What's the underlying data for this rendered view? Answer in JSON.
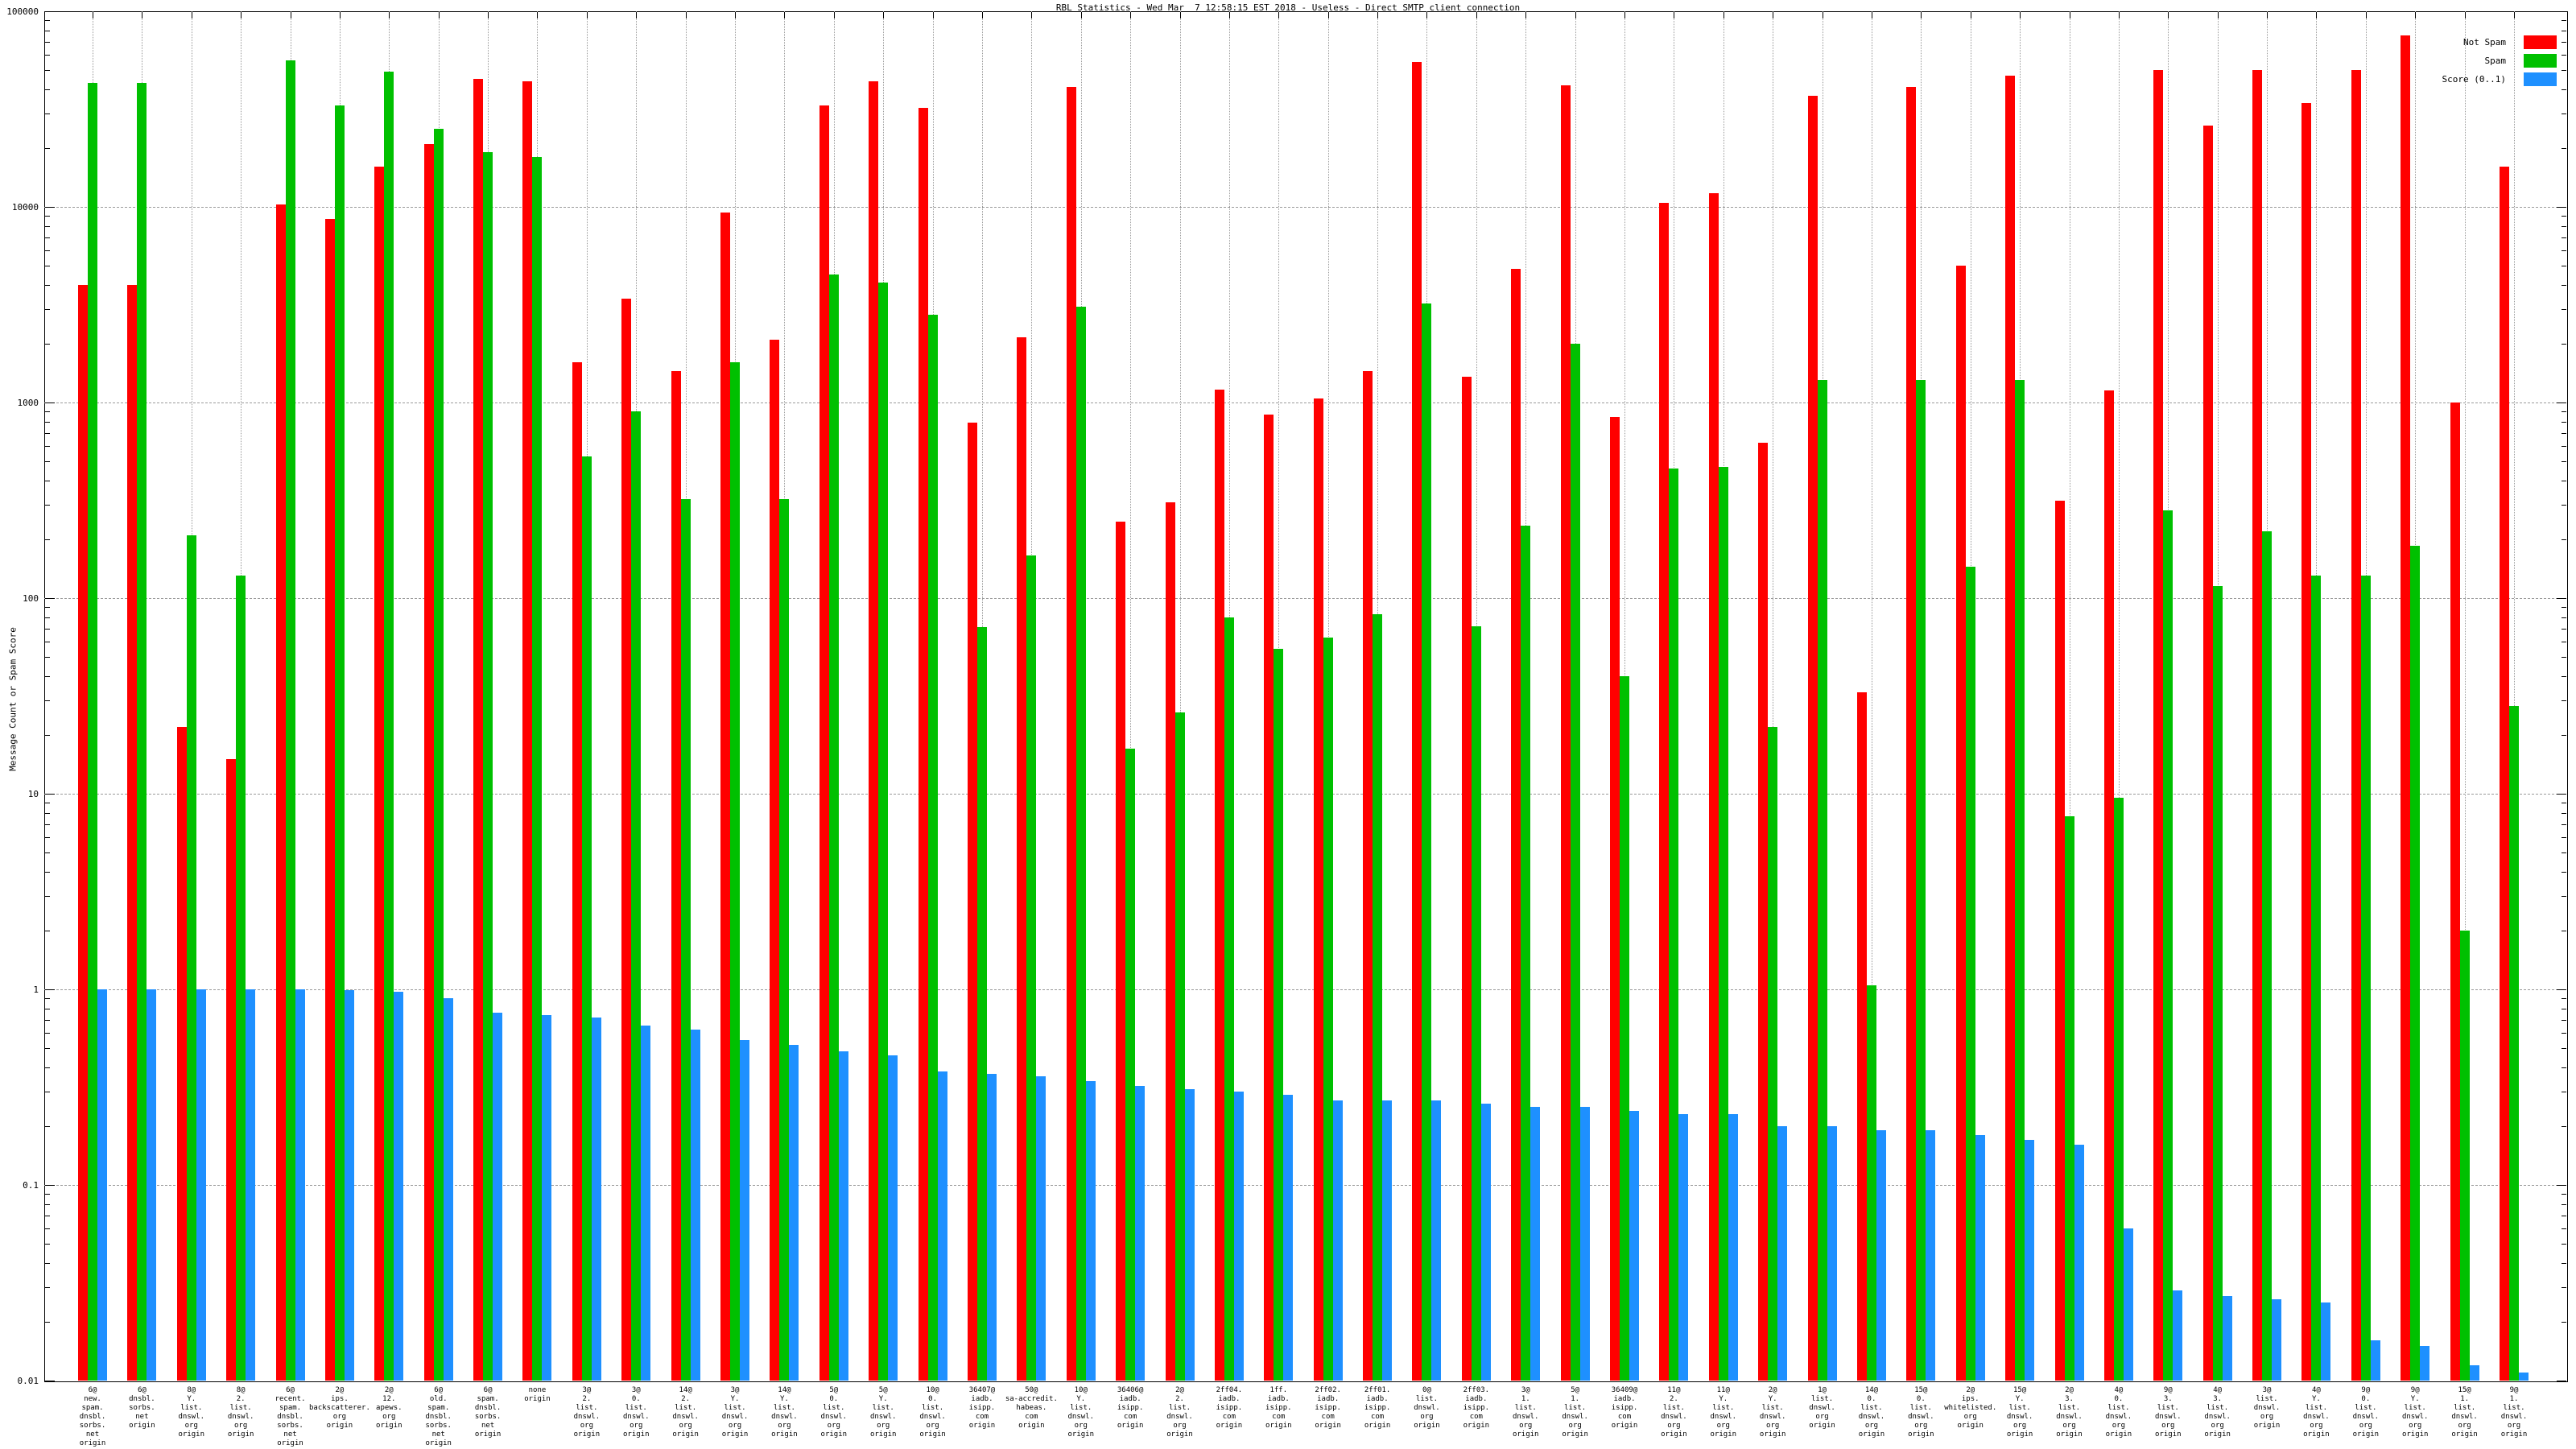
{
  "title": "RBL Statistics - Wed Mar  7 12:58:15 EST 2018 - Useless - Direct SMTP client connection",
  "chart_data": {
    "type": "bar",
    "title": "RBL Statistics - Wed Mar  7 12:58:15 EST 2018 - Useless - Direct SMTP client connection",
    "xlabel": "",
    "ylabel": "Message Count or Spam Score",
    "y_scale": "log",
    "ylim": [
      0.01,
      100000
    ],
    "y_ticks": [
      "100000",
      "10000",
      "1000",
      "100",
      "10",
      "1",
      "0.1",
      "0.01"
    ],
    "grid": true,
    "legend_position": "top-right",
    "legend": [
      "Not Spam",
      "Spam",
      "Score (0..1)"
    ],
    "colors": {
      "not_spam": "#ff0000",
      "spam": "#00c000",
      "score": "#1e90ff"
    },
    "categories": [
      [
        "6@",
        "new.",
        "spam.",
        "dnsbl.",
        "sorbs.",
        "net",
        "origin"
      ],
      [
        "6@",
        "dnsbl.",
        "sorbs.",
        "net",
        "origin"
      ],
      [
        "8@",
        "Y.",
        "list.",
        "dnswl.",
        "org",
        "origin"
      ],
      [
        "8@",
        "2.",
        "list.",
        "dnswl.",
        "org",
        "origin"
      ],
      [
        "6@",
        "recent.",
        "spam.",
        "dnsbl.",
        "sorbs.",
        "net",
        "origin"
      ],
      [
        "2@",
        "ips.",
        "backscatterer.",
        "org",
        "origin"
      ],
      [
        "2@",
        "12.",
        "apews.",
        "org",
        "origin"
      ],
      [
        "6@",
        "old.",
        "spam.",
        "dnsbl.",
        "sorbs.",
        "net",
        "origin"
      ],
      [
        "6@",
        "spam.",
        "dnsbl.",
        "sorbs.",
        "net",
        "origin"
      ],
      [
        "none",
        "origin"
      ],
      [
        "3@",
        "2.",
        "list.",
        "dnswl.",
        "org",
        "origin"
      ],
      [
        "3@",
        "0.",
        "list.",
        "dnswl.",
        "org",
        "origin"
      ],
      [
        "14@",
        "2.",
        "list.",
        "dnswl.",
        "org",
        "origin"
      ],
      [
        "3@",
        "Y.",
        "list.",
        "dnswl.",
        "org",
        "origin"
      ],
      [
        "14@",
        "Y.",
        "list.",
        "dnswl.",
        "org",
        "origin"
      ],
      [
        "5@",
        "0.",
        "list.",
        "dnswl.",
        "org",
        "origin"
      ],
      [
        "5@",
        "Y.",
        "list.",
        "dnswl.",
        "org",
        "origin"
      ],
      [
        "10@",
        "0.",
        "list.",
        "dnswl.",
        "org",
        "origin"
      ],
      [
        "36407@",
        "iadb.",
        "isipp.",
        "com",
        "origin"
      ],
      [
        "50@",
        "sa-accredit.",
        "habeas.",
        "com",
        "origin"
      ],
      [
        "10@",
        "Y.",
        "list.",
        "dnswl.",
        "org",
        "origin"
      ],
      [
        "36406@",
        "iadb.",
        "isipp.",
        "com",
        "origin"
      ],
      [
        "2@",
        "2.",
        "list.",
        "dnswl.",
        "org",
        "origin"
      ],
      [
        "2ff04.",
        "iadb.",
        "isipp.",
        "com",
        "origin"
      ],
      [
        "1ff.",
        "iadb.",
        "isipp.",
        "com",
        "origin"
      ],
      [
        "2ff02.",
        "iadb.",
        "isipp.",
        "com",
        "origin"
      ],
      [
        "2ff01.",
        "iadb.",
        "isipp.",
        "com",
        "origin"
      ],
      [
        "0@",
        "list.",
        "dnswl.",
        "org",
        "origin"
      ],
      [
        "2ff03.",
        "iadb.",
        "isipp.",
        "com",
        "origin"
      ],
      [
        "3@",
        "1.",
        "list.",
        "dnswl.",
        "org",
        "origin"
      ],
      [
        "5@",
        "1.",
        "list.",
        "dnswl.",
        "org",
        "origin"
      ],
      [
        "36409@",
        "iadb.",
        "isipp.",
        "com",
        "origin"
      ],
      [
        "11@",
        "2.",
        "list.",
        "dnswl.",
        "org",
        "origin"
      ],
      [
        "11@",
        "Y.",
        "list.",
        "dnswl.",
        "org",
        "origin"
      ],
      [
        "2@",
        "Y.",
        "list.",
        "dnswl.",
        "org",
        "origin"
      ],
      [
        "1@",
        "list.",
        "dnswl.",
        "org",
        "origin"
      ],
      [
        "14@",
        "0.",
        "list.",
        "dnswl.",
        "org",
        "origin"
      ],
      [
        "15@",
        "0.",
        "list.",
        "dnswl.",
        "org",
        "origin"
      ],
      [
        "2@",
        "ips.",
        "whitelisted.",
        "org",
        "origin"
      ],
      [
        "15@",
        "Y.",
        "list.",
        "dnswl.",
        "org",
        "origin"
      ],
      [
        "2@",
        "3.",
        "list.",
        "dnswl.",
        "org",
        "origin"
      ],
      [
        "4@",
        "0.",
        "list.",
        "dnswl.",
        "org",
        "origin"
      ],
      [
        "9@",
        "3.",
        "list.",
        "dnswl.",
        "org",
        "origin"
      ],
      [
        "4@",
        "3.",
        "list.",
        "dnswl.",
        "org",
        "origin"
      ],
      [
        "3@",
        "list.",
        "dnswl.",
        "org",
        "origin"
      ],
      [
        "4@",
        "Y.",
        "list.",
        "dnswl.",
        "org",
        "origin"
      ],
      [
        "9@",
        "0.",
        "list.",
        "dnswl.",
        "org",
        "origin"
      ],
      [
        "9@",
        "Y.",
        "list.",
        "dnswl.",
        "org",
        "origin"
      ],
      [
        "15@",
        "1.",
        "list.",
        "dnswl.",
        "org",
        "origin"
      ],
      [
        "9@",
        "1.",
        "list.",
        "dnswl.",
        "org",
        "origin"
      ]
    ],
    "series": [
      {
        "name": "Not Spam",
        "color": "#ff0000",
        "values": [
          4000,
          4000,
          22,
          15,
          10300,
          8700,
          16000,
          21000,
          45000,
          44000,
          1600,
          3400,
          1450,
          9400,
          2100,
          33000,
          44000,
          32000,
          790,
          2150,
          41000,
          245,
          310,
          1160,
          870,
          1050,
          1450,
          55000,
          1350,
          4800,
          42000,
          840,
          10500,
          11700,
          620,
          37000,
          33,
          41000,
          5000,
          47000,
          315,
          1150,
          50000,
          26000,
          50000,
          34000,
          50000,
          75000,
          1000,
          16000
        ]
      },
      {
        "name": "Spam",
        "color": "#00c000",
        "values": [
          43000,
          43000,
          210,
          130,
          56000,
          33000,
          49000,
          25000,
          19000,
          18000,
          530,
          900,
          320,
          1600,
          320,
          4500,
          4100,
          2800,
          71,
          165,
          3100,
          17,
          26,
          80,
          55,
          63,
          83,
          3200,
          72,
          235,
          2000,
          40,
          460,
          470,
          22,
          1300,
          1.05,
          1300,
          145,
          1300,
          7.7,
          9.5,
          280,
          115,
          220,
          130,
          130,
          185,
          2,
          28
        ]
      },
      {
        "name": "Score (0..1)",
        "color": "#1e90ff",
        "values": [
          1.0,
          1.0,
          1.0,
          1.0,
          1.0,
          0.99,
          0.97,
          0.9,
          0.76,
          0.74,
          0.72,
          0.65,
          0.62,
          0.55,
          0.52,
          0.48,
          0.46,
          0.38,
          0.37,
          0.36,
          0.34,
          0.32,
          0.31,
          0.3,
          0.29,
          0.27,
          0.27,
          0.27,
          0.26,
          0.25,
          0.25,
          0.24,
          0.23,
          0.23,
          0.2,
          0.2,
          0.19,
          0.19,
          0.18,
          0.17,
          0.16,
          0.06,
          0.029,
          0.027,
          0.026,
          0.025,
          0.016,
          0.015,
          0.012,
          0.011
        ]
      }
    ]
  }
}
